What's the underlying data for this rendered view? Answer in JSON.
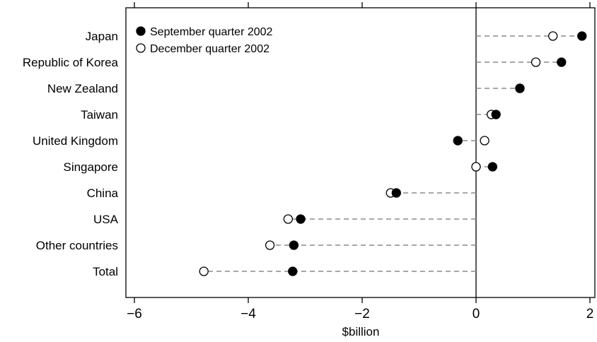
{
  "chart_data": {
    "type": "scatter",
    "subtype": "dot-plot",
    "xlabel": "$billion",
    "xlim": [
      -6.2,
      2.1
    ],
    "xticks": [
      -6,
      -4,
      -2,
      0,
      2
    ],
    "xtick_labels": [
      "−6",
      "−4",
      "−2",
      "0",
      "2"
    ],
    "categories": [
      "Japan",
      "Republic of Korea",
      "New Zealand",
      "Taiwan",
      "United Kingdom",
      "Singapore",
      "China",
      "USA",
      "Other countries",
      "Total"
    ],
    "series": [
      {
        "name": "September quarter 2002",
        "marker": "filled-circle",
        "color": "#000000",
        "values": [
          1.86,
          1.5,
          0.77,
          0.35,
          -0.32,
          0.29,
          -1.4,
          -3.08,
          -3.2,
          -3.22
        ]
      },
      {
        "name": "December quarter 2002",
        "marker": "open-circle",
        "color": "#000000",
        "values": [
          1.35,
          1.05,
          0.77,
          0.27,
          0.15,
          0.0,
          -1.5,
          -3.3,
          -3.62,
          -4.78
        ]
      }
    ],
    "connector": "dashed line from 0 to the data points",
    "connector_color": "#8a8a8a",
    "legend_position": "top-left",
    "grid": false
  }
}
